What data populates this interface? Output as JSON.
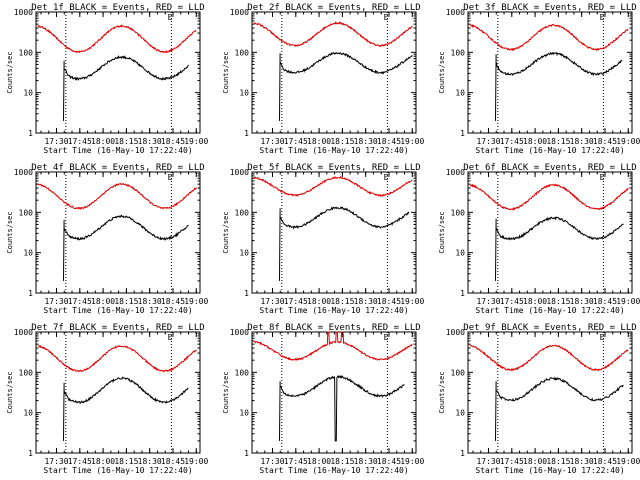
{
  "chart_data": {
    "type": "line",
    "yscale": "log",
    "ylim": [
      1,
      1000
    ],
    "ylabel": "Counts/sec",
    "xlabel": "Start Time (16-May-10 17:22:40)",
    "xlim_hours": [
      17.28,
      19.04
    ],
    "x_tick_labels": [
      "17:30",
      "17:45",
      "18:00",
      "18:15",
      "18:30",
      "18:45",
      "19:00"
    ],
    "y_tick_labels": [
      "1",
      "10",
      "100",
      "1000"
    ],
    "flag_letter": "E",
    "dotted_marker_times": [
      "17:36",
      "18:44"
    ],
    "colors": {
      "events": "#000000",
      "lld": "#e00000"
    },
    "panels": [
      {
        "title": "Det 1f BLACK = Events, RED = LLD",
        "lld_base": 215,
        "lld_amp": 0.32,
        "events_base": 41,
        "events_amp": 0.27,
        "events_start_value": 62,
        "events_end": "18:55",
        "glitch": false
      },
      {
        "title": "Det 2f BLACK = Events, RED = LLD",
        "lld_base": 280,
        "lld_amp": 0.28,
        "events_base": 55,
        "events_amp": 0.24,
        "events_start_value": 95,
        "events_end": "19:00",
        "glitch": false
      },
      {
        "title": "Det 3f BLACK = Events, RED = LLD",
        "lld_base": 235,
        "lld_amp": 0.3,
        "events_base": 52,
        "events_amp": 0.26,
        "events_start_value": 90,
        "events_end": "18:56",
        "glitch": false
      },
      {
        "title": "Det 4f BLACK = Events, RED = LLD",
        "lld_base": 250,
        "lld_amp": 0.3,
        "events_base": 42,
        "events_amp": 0.28,
        "events_start_value": 65,
        "events_end": "18:55",
        "glitch": false
      },
      {
        "title": "Det 5f BLACK = Events, RED = LLD",
        "lld_base": 440,
        "lld_amp": 0.22,
        "events_base": 75,
        "events_amp": 0.24,
        "events_start_value": 125,
        "events_end": "18:58",
        "glitch": false
      },
      {
        "title": "Det 6f BLACK = Events, RED = LLD",
        "lld_base": 240,
        "lld_amp": 0.3,
        "events_base": 40,
        "events_amp": 0.26,
        "events_start_value": 70,
        "events_end": "18:57",
        "glitch": false
      },
      {
        "title": "Det 7f BLACK = Events, RED = LLD",
        "lld_base": 220,
        "lld_amp": 0.31,
        "events_base": 36,
        "events_amp": 0.3,
        "events_start_value": 55,
        "events_end": "18:55",
        "glitch": false
      },
      {
        "title": "Det 8f BLACK = Events, RED = LLD",
        "lld_base": 345,
        "lld_amp": 0.22,
        "events_base": 45,
        "events_amp": 0.24,
        "events_start_value": 60,
        "events_end": "18:55",
        "glitch": true
      },
      {
        "title": "Det 9f BLACK = Events, RED = LLD",
        "lld_base": 230,
        "lld_amp": 0.3,
        "events_base": 38,
        "events_amp": 0.27,
        "events_start_value": 60,
        "events_end": "18:57",
        "glitch": false
      }
    ]
  }
}
